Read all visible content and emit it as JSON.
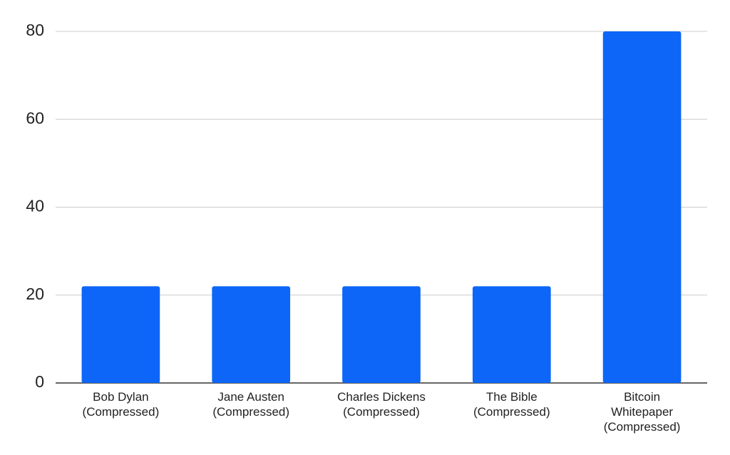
{
  "chart_data": {
    "type": "bar",
    "categories": [
      "Bob Dylan\n(Compressed)",
      "Jane Austen\n(Compressed)",
      "Charles Dickens\n(Compressed)",
      "The Bible\n(Compressed)",
      "Bitcoin\nWhitepaper\n(Compressed)"
    ],
    "values": [
      22,
      22,
      22,
      22,
      80
    ],
    "color": "#0d66f7",
    "ylim": [
      0,
      80
    ],
    "yticks": [
      0,
      20,
      40,
      60,
      80
    ],
    "grid": true
  }
}
